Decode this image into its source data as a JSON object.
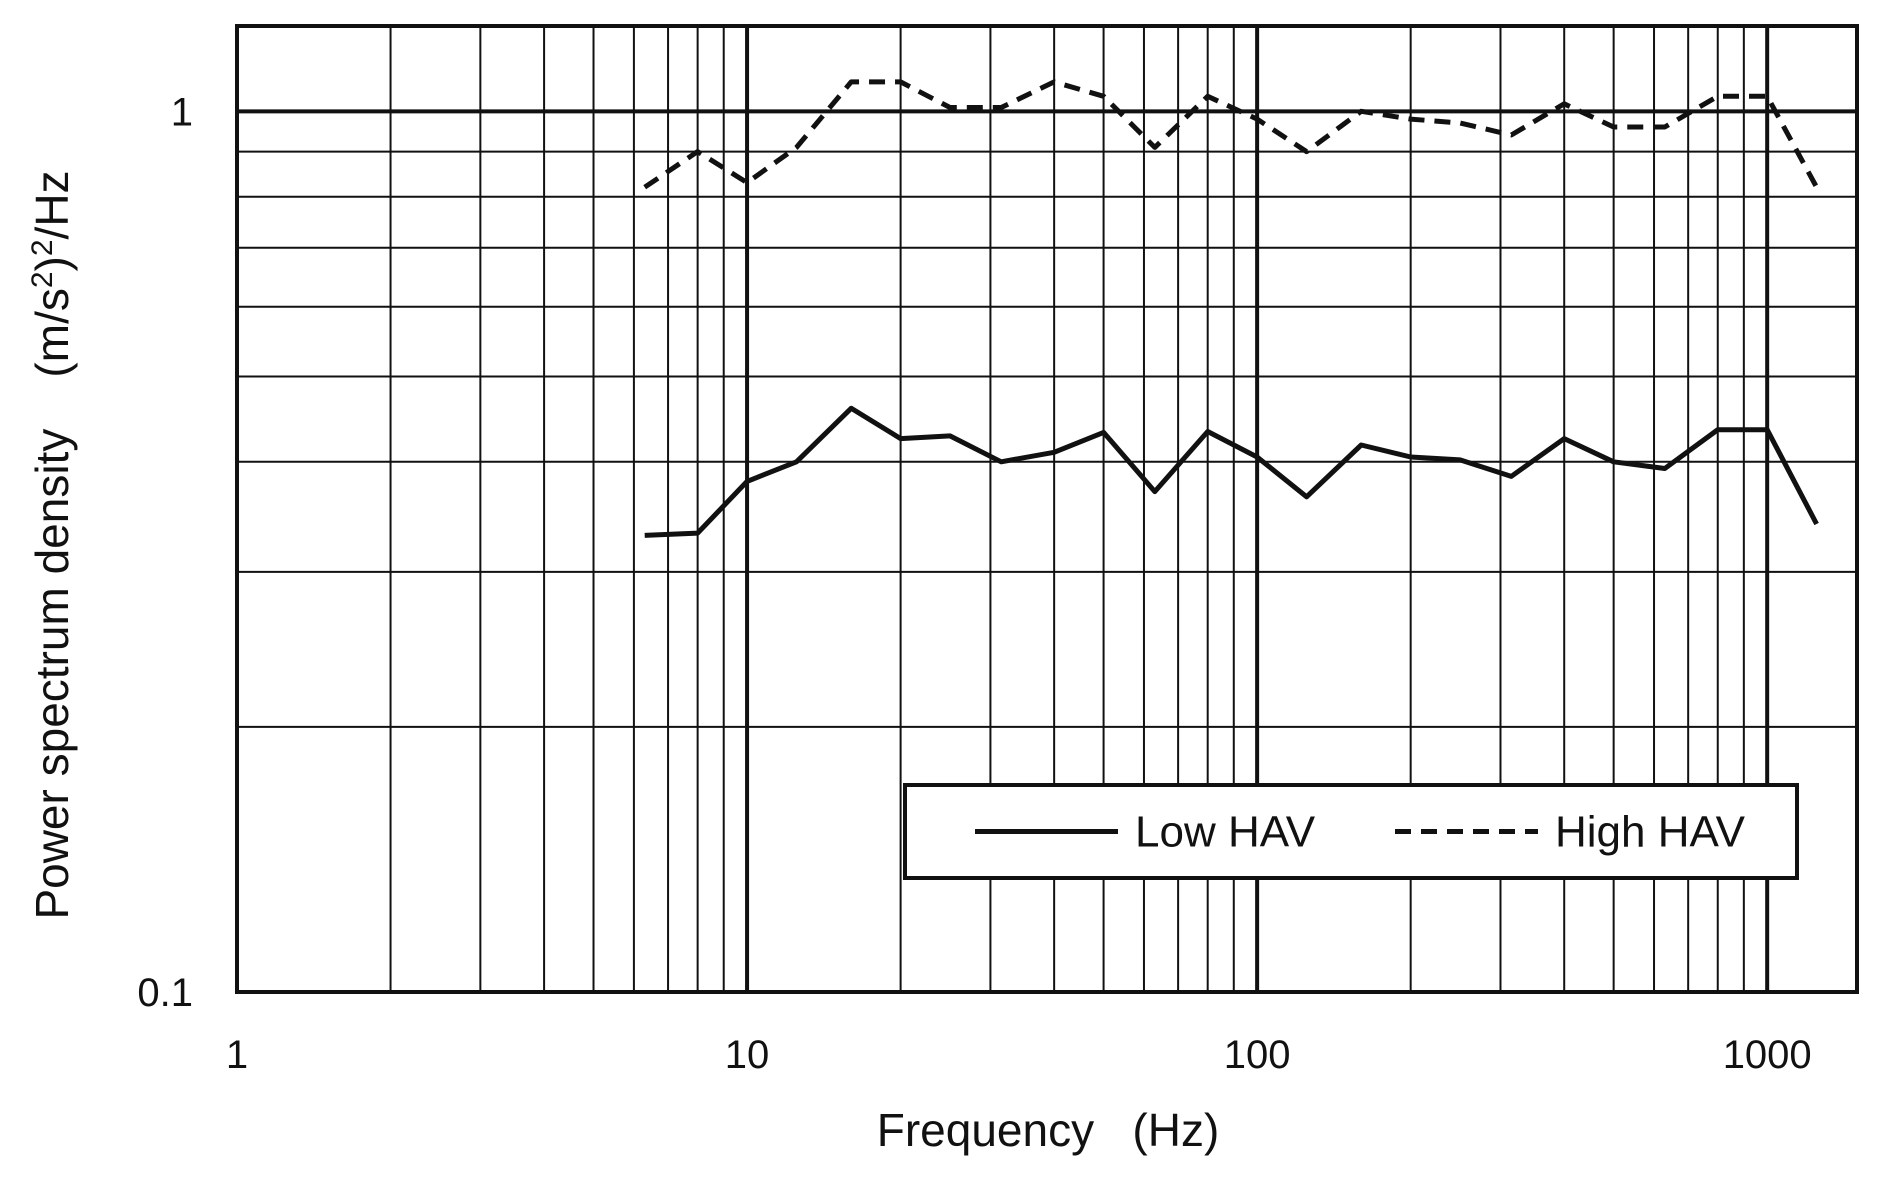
{
  "chart_data": {
    "type": "line",
    "title": "",
    "xlabel": "Frequency   (Hz)",
    "ylabel_text": "Power spectrum density    (m/s",
    "ylabel_sup1": "2",
    "ylabel_mid": ")",
    "ylabel_sup2": "2",
    "ylabel_end": "/Hz",
    "x_scale": "log",
    "y_scale": "log",
    "xlim": [
      1,
      1500
    ],
    "ylim": [
      0.1,
      1.25
    ],
    "x_ticks": [
      1,
      10,
      100,
      1000
    ],
    "x_tick_labels": [
      "1",
      "10",
      "100",
      "1000"
    ],
    "y_ticks": [
      0.1,
      1
    ],
    "y_tick_labels": [
      "0.1",
      "1"
    ],
    "grid": true,
    "legend_position": "bottom-right",
    "x": [
      6.3,
      8,
      10,
      12.5,
      16,
      20,
      25,
      31.5,
      40,
      50,
      63,
      80,
      100,
      125,
      160,
      200,
      250,
      315,
      400,
      500,
      630,
      800,
      1000,
      1250
    ],
    "series": [
      {
        "name": "Low HAV",
        "style": "solid",
        "color": "#111111",
        "values": [
          0.33,
          0.332,
          0.38,
          0.4,
          0.46,
          0.425,
          0.428,
          0.4,
          0.41,
          0.432,
          0.37,
          0.433,
          0.405,
          0.365,
          0.418,
          0.405,
          0.402,
          0.385,
          0.425,
          0.4,
          0.393,
          0.435,
          0.435,
          0.34
        ]
      },
      {
        "name": "High HAV",
        "style": "dashed",
        "color": "#111111",
        "values": [
          0.82,
          0.9,
          0.83,
          0.91,
          1.08,
          1.08,
          1.01,
          1.01,
          1.08,
          1.04,
          0.91,
          1.04,
          0.98,
          0.9,
          1.0,
          0.98,
          0.97,
          0.94,
          1.02,
          0.96,
          0.96,
          1.04,
          1.04,
          0.82
        ]
      }
    ]
  }
}
